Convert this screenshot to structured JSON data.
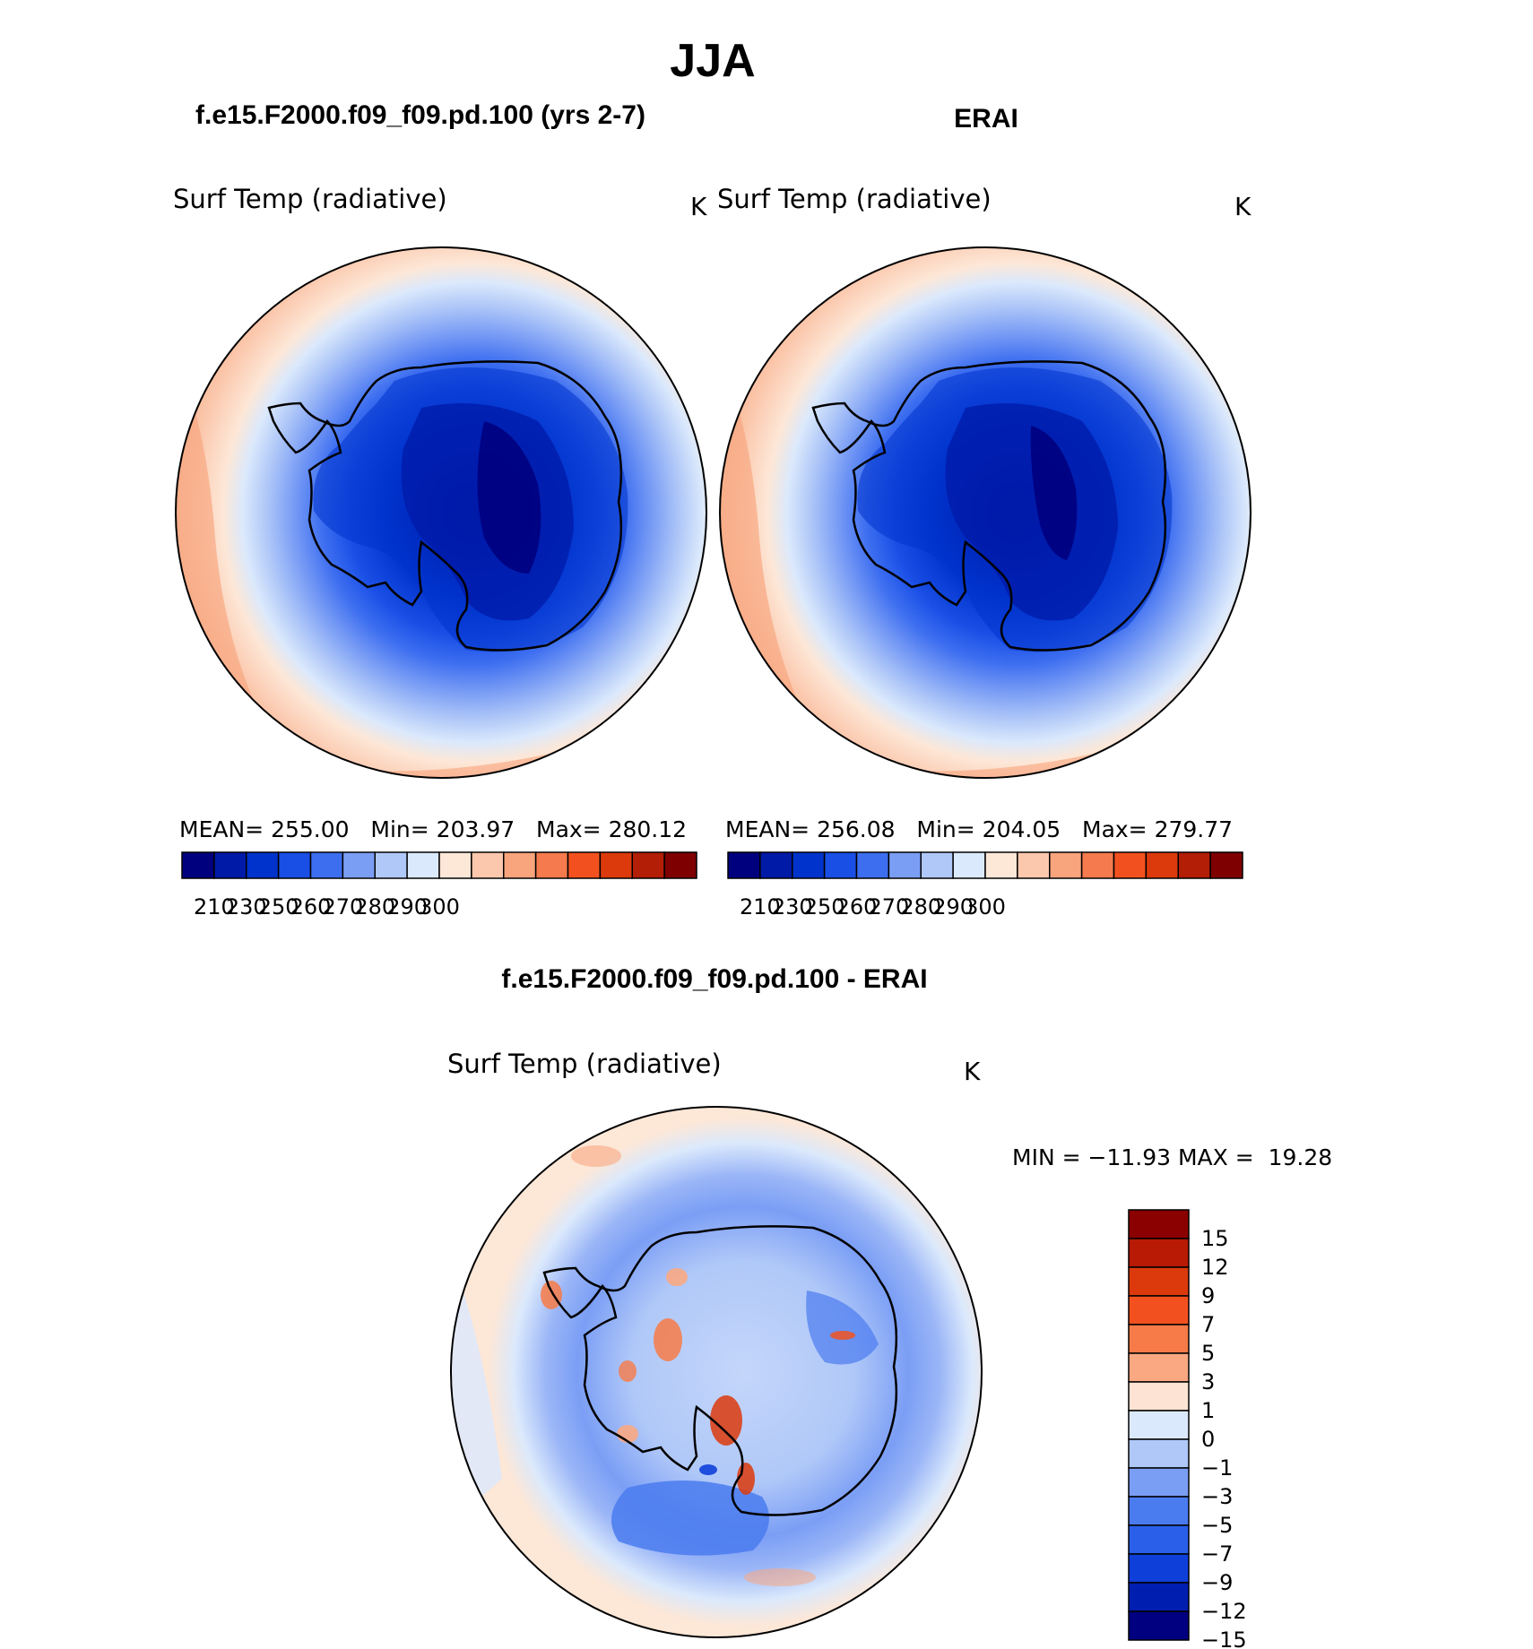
{
  "figure": {
    "title": "JJA",
    "left_title": "f.e15.F2000.f09_f09.pd.100 (yrs 2-7)",
    "right_title": "ERAI",
    "diff_title": "f.e15.F2000.f09_f09.pd.100 - ERAI"
  },
  "panels": [
    {
      "id": "model",
      "variable_label": "Surf Temp (radiative)",
      "units": "K",
      "stats": {
        "mean_label": "MEAN=",
        "mean": "255.00",
        "min_label": "Min=",
        "min": "203.97",
        "max_label": "Max=",
        "max": "280.12"
      }
    },
    {
      "id": "erai",
      "variable_label": "Surf Temp (radiative)",
      "units": "K",
      "stats": {
        "mean_label": "MEAN=",
        "mean": "256.08",
        "min_label": "Min=",
        "min": "204.05",
        "max_label": "Max=",
        "max": "279.77"
      }
    },
    {
      "id": "diff",
      "variable_label": "Surf Temp (radiative)",
      "units": "K",
      "stats": {
        "min_label": "MIN =",
        "min": "−11.93",
        "max_label": "MAX =",
        "max": "19.28"
      }
    }
  ],
  "chart_data": [
    {
      "type": "heatmap",
      "projection": "south-polar-stereographic",
      "title": "Surf Temp (radiative)",
      "units": "K",
      "colorbar": {
        "orientation": "horizontal",
        "tick_labels": [
          "210",
          "230",
          "250",
          "260",
          "270",
          "280",
          "290",
          "300"
        ],
        "colors": [
          "#00007f",
          "#001aa8",
          "#0033cc",
          "#1a4fe6",
          "#3d6ef0",
          "#7b9ef5",
          "#b0c8f8",
          "#dbe9fc",
          "#fde7d7",
          "#fbc8ad",
          "#f8a47c",
          "#f57a4d",
          "#f2511f",
          "#dc3a0c",
          "#b31e06",
          "#7f0000"
        ]
      },
      "values": {
        "mean": 255.0,
        "min": 203.97,
        "max": 280.12
      }
    },
    {
      "type": "heatmap",
      "projection": "south-polar-stereographic",
      "title": "Surf Temp (radiative)",
      "units": "K",
      "colorbar": {
        "orientation": "horizontal",
        "tick_labels": [
          "210",
          "230",
          "250",
          "260",
          "270",
          "280",
          "290",
          "300"
        ],
        "colors": [
          "#00007f",
          "#001aa8",
          "#0033cc",
          "#1a4fe6",
          "#3d6ef0",
          "#7b9ef5",
          "#b0c8f8",
          "#dbe9fc",
          "#fde7d7",
          "#fbc8ad",
          "#f8a47c",
          "#f57a4d",
          "#f2511f",
          "#dc3a0c",
          "#b31e06",
          "#7f0000"
        ]
      },
      "values": {
        "mean": 256.08,
        "min": 204.05,
        "max": 279.77
      }
    },
    {
      "type": "heatmap",
      "projection": "south-polar-stereographic",
      "title": "Surf Temp (radiative)",
      "units": "K",
      "colorbar": {
        "orientation": "vertical",
        "tick_labels": [
          "15",
          "12",
          "9",
          "7",
          "5",
          "3",
          "1",
          "0",
          "−1",
          "−3",
          "−5",
          "−7",
          "−9",
          "−12",
          "−15"
        ],
        "colors": [
          "#8b0000",
          "#b81a05",
          "#dc3a0c",
          "#f2511f",
          "#f77b48",
          "#f9a882",
          "#fde3d3",
          "#dbe9fc",
          "#b0c8f8",
          "#7b9ef5",
          "#4a7bef",
          "#2a5fea",
          "#0f3fd9",
          "#001fb0",
          "#000080"
        ]
      },
      "values": {
        "min": -11.93,
        "max": 19.28
      }
    }
  ]
}
